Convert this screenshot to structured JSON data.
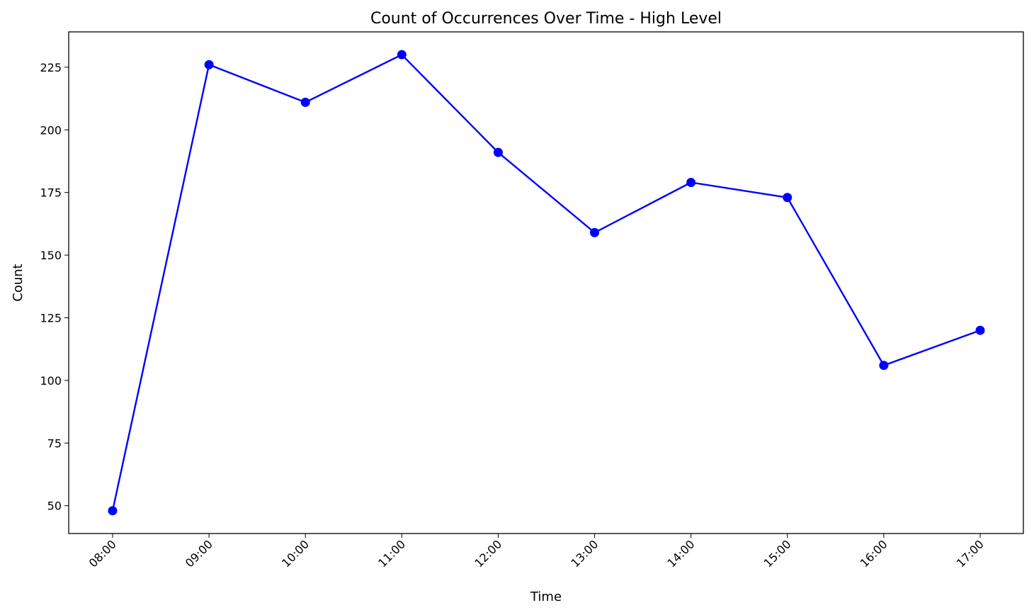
{
  "chart_data": {
    "type": "line",
    "title": "Count of Occurrences Over Time - High Level",
    "xlabel": "Time",
    "ylabel": "Count",
    "categories": [
      "08:00",
      "09:00",
      "10:00",
      "11:00",
      "12:00",
      "13:00",
      "14:00",
      "15:00",
      "16:00",
      "17:00"
    ],
    "series": [
      {
        "values": [
          48,
          226,
          211,
          230,
          191,
          159,
          179,
          173,
          106,
          120
        ],
        "color": "#0000ff",
        "marker": "circle"
      }
    ],
    "yticks": [
      50,
      75,
      100,
      125,
      150,
      175,
      200,
      225
    ],
    "ylim": [
      38.9,
      239.1
    ],
    "grid": false,
    "legend": "none",
    "x_tick_rotation": 45
  }
}
